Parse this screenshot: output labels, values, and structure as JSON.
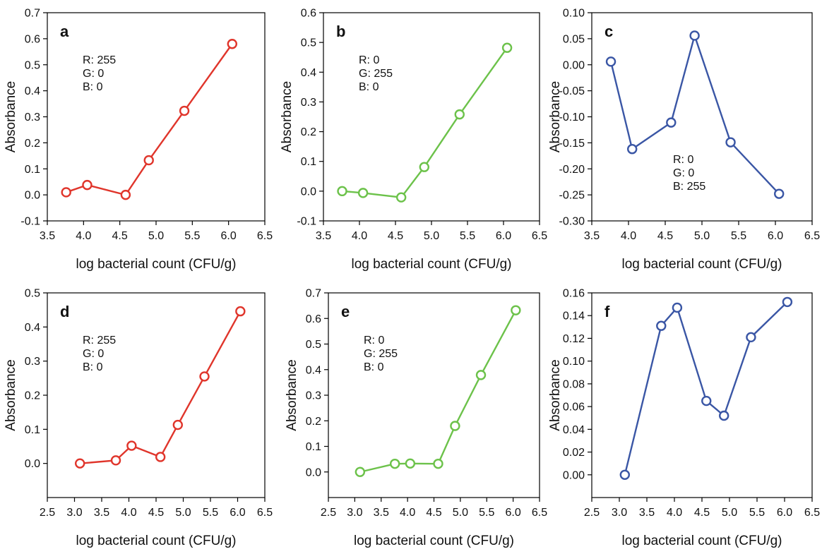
{
  "chart_data": [
    {
      "type": "line",
      "panel": "a",
      "color": "#e0352b",
      "xlabel": "log bacterial count (CFU/g)",
      "ylabel": "Absorbance",
      "xlim": [
        3.5,
        6.5
      ],
      "ylim": [
        -0.1,
        0.7
      ],
      "xticks": [
        "3.5",
        "4.0",
        "4.5",
        "5.0",
        "5.5",
        "6.0",
        "6.5"
      ],
      "yticks": [
        "-0.1",
        "0.0",
        "0.1",
        "0.2",
        "0.3",
        "0.4",
        "0.5",
        "0.6",
        "0.7"
      ],
      "annotation": [
        "R: 255",
        "G: 0",
        "B: 0"
      ],
      "annotation_pos": "top-left",
      "series": [
        {
          "x": [
            3.76,
            4.05,
            4.58,
            4.9,
            5.39,
            6.05
          ],
          "y": [
            0.01,
            0.038,
            0.0,
            0.133,
            0.323,
            0.58
          ]
        }
      ]
    },
    {
      "type": "line",
      "panel": "b",
      "color": "#6cc24a",
      "xlabel": "log bacterial count (CFU/g)",
      "ylabel": "Absorbance",
      "xlim": [
        3.5,
        6.5
      ],
      "ylim": [
        -0.1,
        0.6
      ],
      "xticks": [
        "3.5",
        "4.0",
        "4.5",
        "5.0",
        "5.5",
        "6.0",
        "6.5"
      ],
      "yticks": [
        "-0.1",
        "0.0",
        "0.1",
        "0.2",
        "0.3",
        "0.4",
        "0.5",
        "0.6"
      ],
      "annotation": [
        "R: 0",
        "G: 255",
        "B: 0"
      ],
      "annotation_pos": "top-left",
      "series": [
        {
          "x": [
            3.76,
            4.05,
            4.58,
            4.9,
            5.39,
            6.05
          ],
          "y": [
            0.0,
            -0.006,
            -0.021,
            0.081,
            0.258,
            0.482
          ]
        }
      ]
    },
    {
      "type": "line",
      "panel": "c",
      "color": "#3a56a5",
      "xlabel": "log bacterial count (CFU/g)",
      "ylabel": "Absorbance",
      "xlim": [
        3.5,
        6.5
      ],
      "ylim": [
        -0.3,
        0.1
      ],
      "xticks": [
        "3.5",
        "4.0",
        "4.5",
        "5.0",
        "5.5",
        "6.0",
        "6.5"
      ],
      "yticks": [
        "-0.30",
        "-0.25",
        "-0.20",
        "-0.15",
        "-0.10",
        "-0.05",
        "0.00",
        "0.05",
        "0.10"
      ],
      "annotation": [
        "R: 0",
        "G: 0",
        "B: 255"
      ],
      "annotation_pos": "bottom-center",
      "series": [
        {
          "x": [
            3.76,
            4.05,
            4.58,
            4.9,
            5.39,
            6.05
          ],
          "y": [
            0.006,
            -0.162,
            -0.111,
            0.056,
            -0.149,
            -0.248
          ]
        }
      ]
    },
    {
      "type": "line",
      "panel": "d",
      "color": "#e0352b",
      "xlabel": "log bacterial count (CFU/g)",
      "ylabel": "Absorbance",
      "xlim": [
        2.5,
        6.5
      ],
      "ylim": [
        -0.1,
        0.5
      ],
      "xticks": [
        "2.5",
        "3.0",
        "3.5",
        "4.0",
        "4.5",
        "5.0",
        "5.5",
        "6.0",
        "6.5"
      ],
      "yticks": [
        "0.0",
        "0.1",
        "0.2",
        "0.3",
        "0.4",
        "0.5"
      ],
      "annotation": [
        "R: 255",
        "G: 0",
        "B: 0"
      ],
      "annotation_pos": "top-left",
      "series": [
        {
          "x": [
            3.1,
            3.76,
            4.05,
            4.58,
            4.9,
            5.39,
            6.05
          ],
          "y": [
            0.0,
            0.009,
            0.052,
            0.019,
            0.113,
            0.255,
            0.446
          ]
        }
      ]
    },
    {
      "type": "line",
      "panel": "e",
      "color": "#6cc24a",
      "xlabel": "log bacterial count (CFU/g)",
      "ylabel": "Absorbance",
      "xlim": [
        2.5,
        6.5
      ],
      "ylim": [
        -0.1,
        0.7
      ],
      "xticks": [
        "2.5",
        "3.0",
        "3.5",
        "4.0",
        "4.5",
        "5.0",
        "5.5",
        "6.0",
        "6.5"
      ],
      "yticks": [
        "0.0",
        "0.1",
        "0.2",
        "0.3",
        "0.4",
        "0.5",
        "0.6",
        "0.7"
      ],
      "annotation": [
        "R: 0",
        "G: 255",
        "B: 0"
      ],
      "annotation_pos": "top-left",
      "series": [
        {
          "x": [
            3.1,
            3.76,
            4.05,
            4.58,
            4.9,
            5.39,
            6.05
          ],
          "y": [
            0.0,
            0.032,
            0.033,
            0.032,
            0.18,
            0.379,
            0.632
          ]
        }
      ]
    },
    {
      "type": "line",
      "panel": "f",
      "color": "#3a56a5",
      "xlabel": "log bacterial count (CFU/g)",
      "ylabel": "Absorbance",
      "xlim": [
        2.5,
        6.5
      ],
      "ylim": [
        -0.02,
        0.16
      ],
      "xticks": [
        "2.5",
        "3.0",
        "3.5",
        "4.0",
        "4.5",
        "5.0",
        "5.5",
        "6.0",
        "6.5"
      ],
      "yticks": [
        "0.00",
        "0.02",
        "0.04",
        "0.06",
        "0.08",
        "0.10",
        "0.12",
        "0.14",
        "0.16"
      ],
      "annotation": [],
      "annotation_pos": "",
      "series": [
        {
          "x": [
            3.1,
            3.76,
            4.05,
            4.58,
            4.9,
            5.39,
            6.05
          ],
          "y": [
            0.0,
            0.131,
            0.147,
            0.065,
            0.052,
            0.121,
            0.152
          ]
        }
      ]
    }
  ]
}
